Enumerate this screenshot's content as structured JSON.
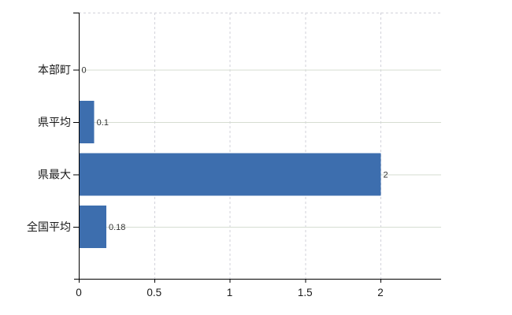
{
  "chart_data": {
    "type": "bar",
    "orientation": "horizontal",
    "categories": [
      "本部町",
      "県平均",
      "県最大",
      "全国平均"
    ],
    "values": [
      0,
      0.1,
      2,
      0.18
    ],
    "value_labels": [
      "0",
      "0.1",
      "2",
      "0.18"
    ],
    "x_ticks": [
      0,
      0.5,
      1,
      1.5,
      2
    ],
    "x_tick_labels": [
      "0",
      "0.5",
      "1",
      "1.5",
      "2"
    ],
    "xlim": [
      0,
      2.4
    ],
    "grid": true,
    "legend": "none",
    "style": {
      "bar_color": "#3d6eae",
      "h_gridline_color": "#d6ddd2",
      "dashed_line_color": "#d2d2da",
      "axis_color": "#000000",
      "text_color": "#1a1a1a",
      "value_label_color": "#333333",
      "background_color": "#ffffff"
    }
  }
}
